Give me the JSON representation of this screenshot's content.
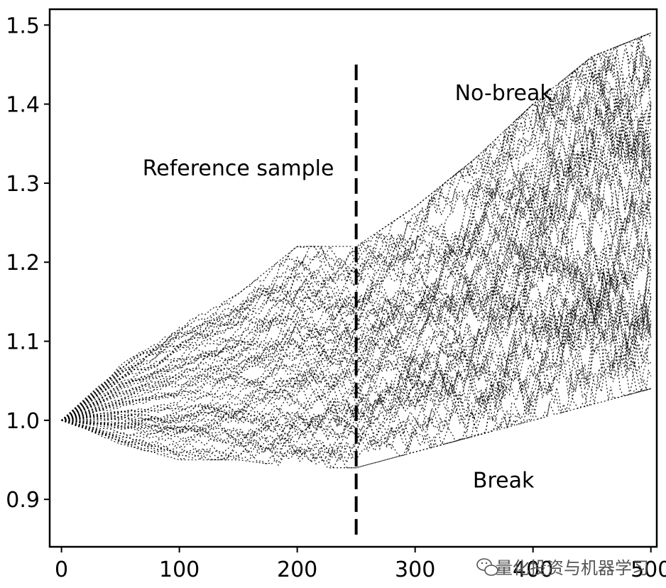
{
  "chart_data": {
    "type": "line",
    "title": "",
    "xlabel": "",
    "ylabel": "",
    "xlim": [
      -10,
      505
    ],
    "ylim": [
      0.84,
      1.52
    ],
    "x_ticks": [
      0,
      100,
      200,
      300,
      400,
      500
    ],
    "y_ticks": [
      0.9,
      1.0,
      1.1,
      1.2,
      1.3,
      1.4,
      1.5
    ],
    "x_tick_labels": [
      "0",
      "100",
      "200",
      "300",
      "400",
      "500"
    ],
    "y_tick_labels": [
      "0.9",
      "1.0",
      "1.1",
      "1.2",
      "1.3",
      "1.4",
      "1.5"
    ],
    "grid": false,
    "line_color": "#000000",
    "sample_break": {
      "x": 250,
      "y_range": [
        0.85,
        1.45
      ],
      "style": "dashed"
    },
    "envelope": {
      "x": [
        0,
        50,
        100,
        150,
        200,
        250,
        300,
        350,
        400,
        450,
        500
      ],
      "upper": [
        1.0,
        1.07,
        1.12,
        1.16,
        1.22,
        1.22,
        1.27,
        1.33,
        1.4,
        1.46,
        1.49
      ],
      "lower": [
        1.0,
        0.97,
        0.95,
        0.95,
        0.94,
        0.94,
        0.96,
        0.98,
        1.0,
        1.02,
        1.04
      ]
    },
    "series_count": 60,
    "annotations": [
      {
        "text": "Reference sample",
        "x": 150,
        "y": 1.31
      },
      {
        "text": "No-break",
        "x": 375,
        "y": 1.405
      },
      {
        "text": "Break",
        "x": 375,
        "y": 0.915
      }
    ]
  },
  "watermark": {
    "text": "量化投资与机器学习",
    "icon": "wechat-icon"
  }
}
